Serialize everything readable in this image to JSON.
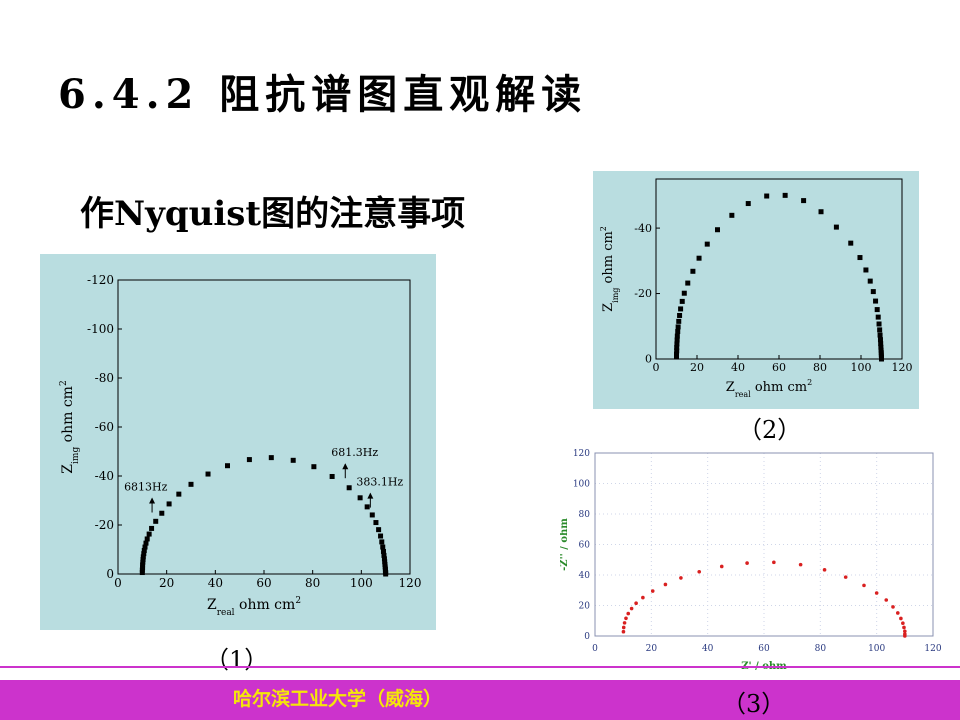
{
  "slide": {
    "title": "6.4.2 阻抗谱图直观解读",
    "subtitle_bold": "作",
    "subtitle_latin": "Nyquist",
    "subtitle_rest": "图的注意事项",
    "footer": "哈尔滨工业大学（威海）",
    "captions": [
      "（1）",
      "（2）",
      "（3）"
    ],
    "colors": {
      "panel_bg": "#b9dde0",
      "footer_bar": "#cc33cc",
      "footer_text": "#f5e60a",
      "points_chart3": "#d92020",
      "axis_label_chart3": "#2a8a2a"
    }
  },
  "chart_data": [
    {
      "type": "scatter",
      "xlabel_main": "Z",
      "xlabel_sub": "real",
      "xlabel_unit": "ohm cm",
      "xlabel_sup": "2",
      "ylabel_main": "Z",
      "ylabel_sub": "img",
      "ylabel_unit": "ohm cm",
      "ylabel_sup": "2",
      "xlim": [
        0,
        120
      ],
      "ylim": [
        0,
        -120
      ],
      "xticks": [
        "0",
        "20",
        "40",
        "60",
        "80",
        "100",
        "120"
      ],
      "yticks": [
        "0",
        "-20",
        "-40",
        "-60",
        "-80",
        "-100",
        "-120"
      ],
      "annotations": [
        {
          "text": "6813Hz",
          "x": 14,
          "y": -30
        },
        {
          "text": "681.3Hz",
          "x": 93.4,
          "y": -44
        },
        {
          "text": "383.1Hz",
          "x": 103.7,
          "y": -32
        }
      ],
      "x": [
        10,
        10,
        10.1,
        10.1,
        10.2,
        10.3,
        10.4,
        10.6,
        10.8,
        11.1,
        11.5,
        12,
        12.8,
        13.8,
        15.5,
        18,
        21,
        25,
        30,
        37,
        45,
        54,
        63,
        72,
        80.5,
        88,
        95,
        99.5,
        102.4,
        104.5,
        106,
        107.1,
        107.9,
        108.4,
        108.8,
        109.1,
        109.3,
        109.5,
        109.6,
        109.7,
        109.8,
        109.9,
        109.9,
        110,
        110
      ],
      "y": [
        -0.6,
        -1.6,
        -2.6,
        -3.7,
        -4.8,
        -5.9,
        -7,
        -8.3,
        -9.6,
        -11,
        -12.6,
        -14.3,
        -16.3,
        -18.6,
        -21.5,
        -24.8,
        -28.6,
        -32.6,
        -36.6,
        -40.8,
        -44.2,
        -46.7,
        -47.5,
        -46.4,
        -43.8,
        -39.8,
        -35.2,
        -31.1,
        -27.4,
        -24.1,
        -21,
        -18.1,
        -15.5,
        -13.1,
        -11,
        -9.2,
        -7.6,
        -6.2,
        -5,
        -3.9,
        -2.9,
        -2,
        -1.2,
        -0.6,
        0
      ]
    },
    {
      "type": "scatter",
      "xlabel_main": "Z",
      "xlabel_sub": "real",
      "xlabel_unit": "ohm cm",
      "xlabel_sup": "2",
      "ylabel_main": "Z",
      "ylabel_sub": "img",
      "ylabel_unit": "ohm cm",
      "ylabel_sup": "2",
      "xlim": [
        0,
        120
      ],
      "ylim": [
        0,
        -55
      ],
      "xticks": [
        "0",
        "20",
        "40",
        "60",
        "80",
        "100",
        "120"
      ],
      "yticks": [
        "0",
        "-20",
        "-40"
      ],
      "x": [
        10,
        10,
        10.1,
        10.1,
        10.2,
        10.3,
        10.4,
        10.6,
        10.8,
        11.1,
        11.5,
        12,
        12.8,
        13.8,
        15.5,
        18,
        21,
        25,
        30,
        37,
        45,
        54,
        63,
        72,
        80.5,
        88,
        95,
        99.5,
        102.4,
        104.5,
        106,
        107.1,
        107.9,
        108.4,
        108.8,
        109.1,
        109.3,
        109.5,
        109.6,
        109.7,
        109.8,
        109.9,
        109.9,
        110,
        110
      ],
      "y": [
        -0.6,
        -1.5,
        -2.5,
        -3.5,
        -4.6,
        -5.8,
        -7,
        -8.4,
        -9.8,
        -11.5,
        -13.3,
        -15.3,
        -17.6,
        -20.1,
        -23.2,
        -26.8,
        -30.8,
        -35.1,
        -39.5,
        -43.9,
        -47.5,
        -49.8,
        -50,
        -48.4,
        -45,
        -40.3,
        -35.4,
        -31,
        -27.2,
        -23.8,
        -20.6,
        -17.7,
        -15.1,
        -12.8,
        -10.7,
        -8.9,
        -7.3,
        -5.9,
        -4.7,
        -3.6,
        -2.7,
        -1.9,
        -1.2,
        -0.6,
        0
      ]
    },
    {
      "type": "scatter",
      "xlabel": "Z' / ohm",
      "ylabel": "-Z'' / ohm",
      "xlim": [
        0,
        120
      ],
      "ylim": [
        0,
        120
      ],
      "xticks": [
        "0",
        "20",
        "40",
        "60",
        "80",
        "100",
        "120"
      ],
      "yticks": [
        "0",
        "20",
        "40",
        "60",
        "80",
        "100",
        "120"
      ],
      "x": [
        10.1,
        10.2,
        10.5,
        11,
        11.8,
        13,
        14.6,
        17,
        20.5,
        25,
        30.5,
        37,
        45,
        54,
        63.5,
        73,
        81.5,
        89,
        95.5,
        100,
        103.4,
        105.8,
        107.5,
        108.6,
        109.3,
        109.7,
        110,
        110,
        110
      ],
      "y": [
        2.8,
        5.6,
        8.6,
        11.6,
        14.7,
        18,
        21.5,
        25.2,
        29.5,
        33.8,
        38.1,
        42.1,
        45.6,
        47.8,
        48.3,
        46.8,
        43.4,
        38.6,
        33.2,
        28.2,
        23.6,
        19.1,
        15.1,
        11.5,
        8.4,
        5.6,
        3.1,
        1.2,
        0
      ]
    }
  ]
}
